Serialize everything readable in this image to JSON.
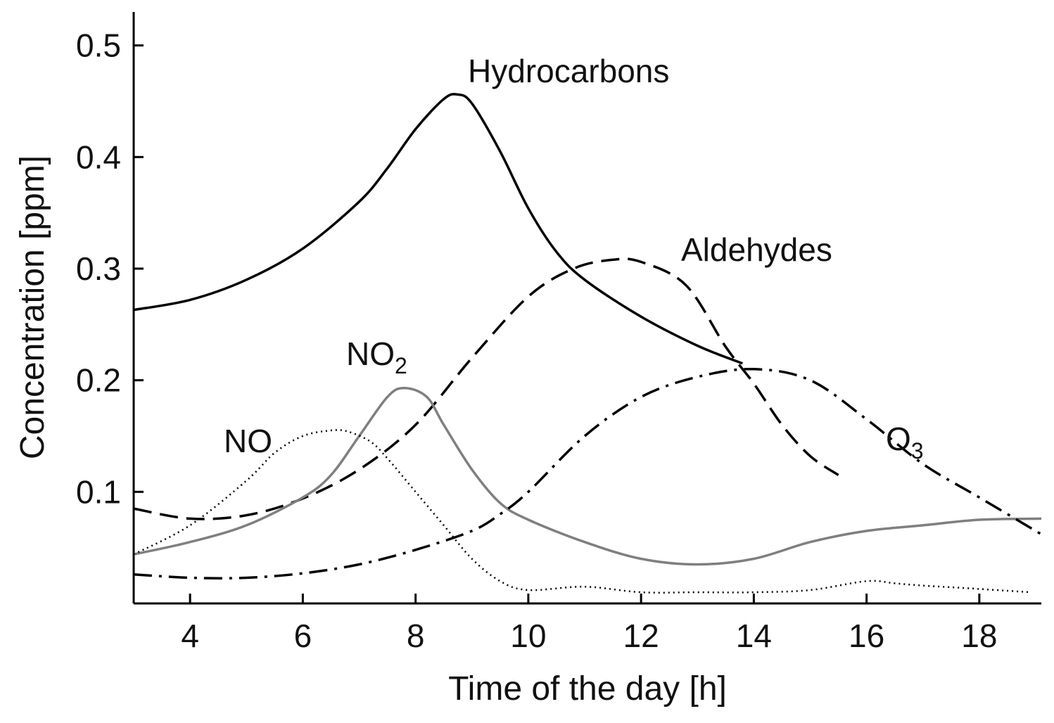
{
  "chart_data": {
    "type": "line",
    "xlabel": "Time of the day [h]",
    "ylabel": "Concentration [ppm]",
    "xlim": [
      3,
      19.1
    ],
    "ylim": [
      0,
      0.53
    ],
    "xticks": [
      4,
      6,
      8,
      10,
      12,
      14,
      16,
      18
    ],
    "yticks": [
      0.1,
      0.2,
      0.3,
      0.4,
      0.5
    ],
    "xtick_labels": [
      "4",
      "6",
      "8",
      "10",
      "12",
      "14",
      "16",
      "18"
    ],
    "ytick_labels": [
      "0.1",
      "0.2",
      "0.3",
      "0.4",
      "0.5"
    ],
    "grid": false,
    "legend": "none",
    "series": [
      {
        "name": "Hydrocarbons",
        "label_text": "Hydrocarbons",
        "style": "solid",
        "color": "#000000",
        "x": [
          3,
          4,
          5,
          6,
          7,
          7.5,
          8,
          8.5,
          8.75,
          9,
          9.5,
          10,
          10.5,
          11,
          12,
          13,
          13.8
        ],
        "y": [
          0.263,
          0.272,
          0.29,
          0.318,
          0.36,
          0.39,
          0.425,
          0.452,
          0.456,
          0.448,
          0.405,
          0.354,
          0.315,
          0.29,
          0.257,
          0.231,
          0.215
        ]
      },
      {
        "name": "Aldehydes",
        "label_text": "Aldehydes",
        "style": "dashed",
        "color": "#000000",
        "x": [
          3,
          4,
          5,
          6,
          7,
          8,
          9,
          10,
          10.8,
          11.5,
          12,
          12.8,
          13.5,
          14,
          14.5,
          15,
          15.5
        ],
        "y": [
          0.085,
          0.076,
          0.079,
          0.094,
          0.12,
          0.16,
          0.22,
          0.275,
          0.3,
          0.308,
          0.306,
          0.285,
          0.23,
          0.197,
          0.16,
          0.132,
          0.115
        ]
      },
      {
        "name": "NO2",
        "label_main": "NO",
        "label_sub": "2",
        "style": "solid",
        "color": "#7f7f7f",
        "x": [
          3,
          4,
          5,
          6,
          6.5,
          7,
          7.5,
          7.8,
          8.2,
          8.5,
          9,
          9.5,
          10,
          11,
          12,
          13,
          14,
          15,
          16,
          17,
          18,
          19.1
        ],
        "y": [
          0.044,
          0.055,
          0.07,
          0.095,
          0.115,
          0.15,
          0.185,
          0.193,
          0.185,
          0.16,
          0.12,
          0.09,
          0.075,
          0.055,
          0.04,
          0.035,
          0.04,
          0.055,
          0.065,
          0.07,
          0.075,
          0.076
        ]
      },
      {
        "name": "NO",
        "label_text": "NO",
        "style": "dotted",
        "color": "#000000",
        "x": [
          3,
          4,
          5,
          5.5,
          6,
          6.5,
          6.8,
          7.2,
          7.5,
          8,
          8.5,
          9,
          9.5,
          10,
          11,
          12,
          13,
          14,
          15,
          16,
          16.5,
          17,
          18,
          18.9
        ],
        "y": [
          0.044,
          0.07,
          0.11,
          0.135,
          0.15,
          0.155,
          0.154,
          0.145,
          0.13,
          0.1,
          0.07,
          0.04,
          0.02,
          0.012,
          0.015,
          0.01,
          0.01,
          0.01,
          0.012,
          0.02,
          0.018,
          0.016,
          0.013,
          0.01
        ]
      },
      {
        "name": "O3",
        "label_main": "O",
        "label_sub": "3",
        "style": "dashdot",
        "color": "#000000",
        "x": [
          3,
          4,
          5,
          6,
          7,
          8,
          9,
          9.5,
          10,
          11,
          12,
          13,
          14,
          15,
          16,
          17,
          18,
          19.1
        ],
        "y": [
          0.026,
          0.023,
          0.023,
          0.027,
          0.035,
          0.048,
          0.065,
          0.08,
          0.1,
          0.15,
          0.185,
          0.203,
          0.21,
          0.2,
          0.165,
          0.125,
          0.095,
          0.062
        ]
      }
    ]
  }
}
